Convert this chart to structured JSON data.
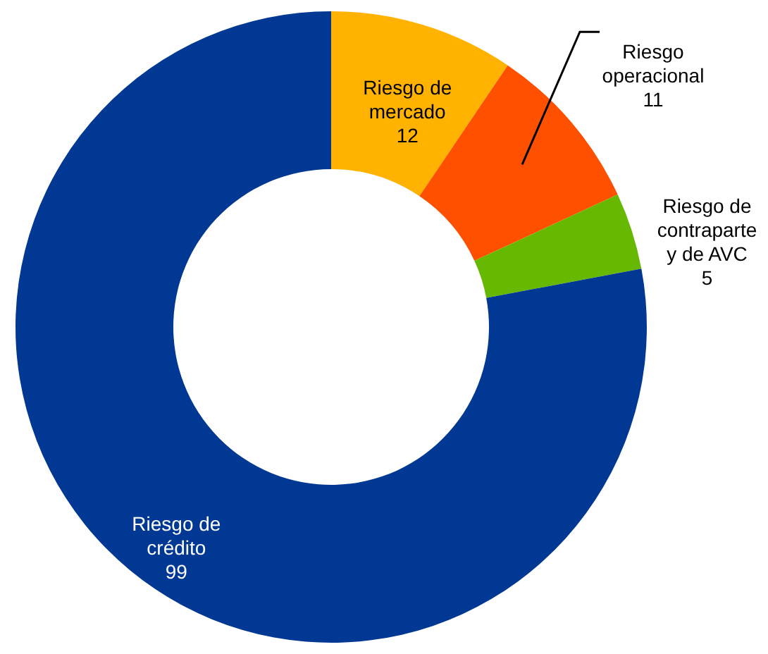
{
  "chart_data": {
    "type": "donut",
    "categories": [
      "Riesgo de\nmercado",
      "Riesgo\noperacional",
      "Riesgo de\ncontraparte\ny de AVC",
      "Riesgo de\ncrédito"
    ],
    "values": [
      12,
      11,
      5,
      99
    ],
    "colors": [
      "#ffb300",
      "#ff5000",
      "#66b800",
      "#003893"
    ],
    "data_labels": true
  }
}
